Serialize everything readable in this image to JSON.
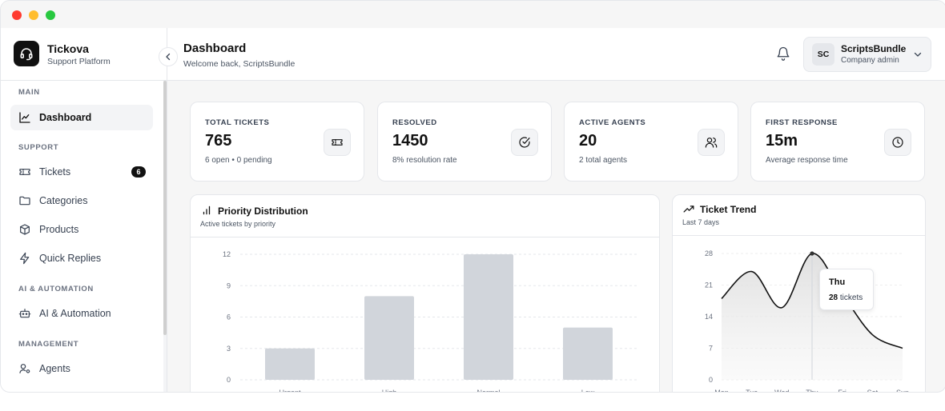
{
  "window": {
    "controls": [
      "close",
      "minimize",
      "maximize"
    ],
    "control_colors": [
      "#ff3b30",
      "#ffbd2e",
      "#28c840"
    ]
  },
  "brand": {
    "name": "Tickova",
    "subtitle": "Support Platform",
    "logo_icon": "headset-icon"
  },
  "sidebar": {
    "sections": [
      {
        "label": "MAIN",
        "items": [
          {
            "label": "Dashboard",
            "icon": "line-chart-icon",
            "active": true
          }
        ]
      },
      {
        "label": "SUPPORT",
        "items": [
          {
            "label": "Tickets",
            "icon": "ticket-icon",
            "badge": "6"
          },
          {
            "label": "Categories",
            "icon": "folder-icon"
          },
          {
            "label": "Products",
            "icon": "box-icon"
          },
          {
            "label": "Quick Replies",
            "icon": "lightning-icon"
          }
        ]
      },
      {
        "label": "AI & AUTOMATION",
        "items": [
          {
            "label": "AI & Automation",
            "icon": "bot-icon"
          }
        ]
      },
      {
        "label": "MANAGEMENT",
        "items": [
          {
            "label": "Agents",
            "icon": "user-gear-icon"
          }
        ]
      }
    ]
  },
  "header": {
    "title": "Dashboard",
    "subtitle": "Welcome back, ScriptsBundle",
    "user": {
      "initials": "SC",
      "name": "ScriptsBundle",
      "role": "Company admin"
    }
  },
  "stats": [
    {
      "label": "TOTAL TICKETS",
      "value": "765",
      "sub": "6 open • 0 pending",
      "icon": "ticket-icon"
    },
    {
      "label": "RESOLVED",
      "value": "1450",
      "sub": "8% resolution rate",
      "icon": "check-circle-icon"
    },
    {
      "label": "ACTIVE AGENTS",
      "value": "20",
      "sub": "2 total agents",
      "icon": "users-icon"
    },
    {
      "label": "FIRST RESPONSE",
      "value": "15m",
      "sub": "Average response time",
      "icon": "clock-icon"
    }
  ],
  "priority_chart": {
    "title": "Priority Distribution",
    "subtitle": "Active tickets by priority",
    "icon": "bar-chart-icon"
  },
  "trend_chart": {
    "title": "Ticket Trend",
    "subtitle": "Last 7 days",
    "icon": "trending-up-icon",
    "tooltip": {
      "day": "Thu",
      "value": "28",
      "unit": "tickets"
    }
  },
  "chart_data": [
    {
      "type": "bar",
      "title": "Priority Distribution",
      "subtitle": "Active tickets by priority",
      "categories": [
        "Urgent",
        "High",
        "Normal",
        "Low"
      ],
      "values": [
        3,
        8,
        12,
        5
      ],
      "yticks": [
        0,
        3,
        6,
        9,
        12
      ],
      "ylim": [
        0,
        12
      ],
      "grid": true,
      "bar_color": "#d1d5db"
    },
    {
      "type": "area",
      "title": "Ticket Trend",
      "subtitle": "Last 7 days",
      "categories": [
        "Mon",
        "Tue",
        "Wed",
        "Thu",
        "Fri",
        "Sat",
        "Sun"
      ],
      "values": [
        18,
        24,
        16,
        28,
        19,
        10,
        7
      ],
      "yticks": [
        0,
        7,
        14,
        21,
        28
      ],
      "ylim": [
        0,
        28
      ],
      "grid": true,
      "line_color": "#111111"
    }
  ]
}
